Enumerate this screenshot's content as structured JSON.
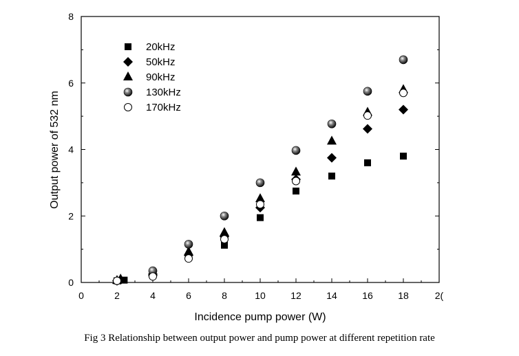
{
  "caption": "Fig 3 Relationship between output power and pump power at different repetition rate",
  "chart_data": {
    "type": "scatter",
    "title": "",
    "xlabel": "Incidence pump power (W)",
    "ylabel": "Output power of 532 nm",
    "xlim": [
      0,
      20
    ],
    "ylim": [
      0,
      8
    ],
    "x_ticks": [
      "0",
      "2",
      "4",
      "6",
      "8",
      "10",
      "12",
      "14",
      "16",
      "18",
      "2("
    ],
    "y_ticks": [
      "0",
      "2",
      "4",
      "6",
      "8"
    ],
    "grid": false,
    "legend_position": "top-left",
    "series": [
      {
        "name": "20kHz",
        "marker": "square",
        "points": [
          [
            2,
            0.05
          ],
          [
            2.4,
            0.07
          ],
          [
            4,
            0.22
          ],
          [
            6,
            0.75
          ],
          [
            8,
            1.12
          ],
          [
            10,
            1.95
          ],
          [
            12,
            2.75
          ],
          [
            14,
            3.2
          ],
          [
            16,
            3.6
          ],
          [
            18,
            3.8
          ]
        ]
      },
      {
        "name": "50kHz",
        "marker": "diamond",
        "points": [
          [
            2,
            0.05
          ],
          [
            2.2,
            0.08
          ],
          [
            4,
            0.25
          ],
          [
            6,
            0.82
          ],
          [
            8,
            1.38
          ],
          [
            10,
            2.25
          ],
          [
            12,
            3.1
          ],
          [
            14,
            3.75
          ],
          [
            16,
            4.62
          ],
          [
            18,
            5.2
          ]
        ]
      },
      {
        "name": "90kHz",
        "marker": "triangle",
        "points": [
          [
            2,
            0.06
          ],
          [
            2.2,
            0.1
          ],
          [
            4,
            0.3
          ],
          [
            6,
            0.92
          ],
          [
            8,
            1.5
          ],
          [
            10,
            2.52
          ],
          [
            12,
            3.32
          ],
          [
            14,
            4.25
          ],
          [
            16,
            5.12
          ],
          [
            18,
            5.8
          ]
        ]
      },
      {
        "name": "130kHz",
        "marker": "sphere",
        "points": [
          [
            4,
            0.35
          ],
          [
            6,
            1.15
          ],
          [
            8,
            2.0
          ],
          [
            10,
            3.0
          ],
          [
            12,
            3.97
          ],
          [
            14,
            4.77
          ],
          [
            16,
            5.75
          ],
          [
            18,
            6.7
          ]
        ]
      },
      {
        "name": "170kHz",
        "marker": "open-circle",
        "points": [
          [
            2,
            0.05
          ],
          [
            4,
            0.18
          ],
          [
            6,
            0.72
          ],
          [
            8,
            1.3
          ],
          [
            10,
            2.35
          ],
          [
            12,
            3.05
          ],
          [
            16,
            5.02
          ],
          [
            18,
            5.7
          ]
        ]
      }
    ]
  }
}
